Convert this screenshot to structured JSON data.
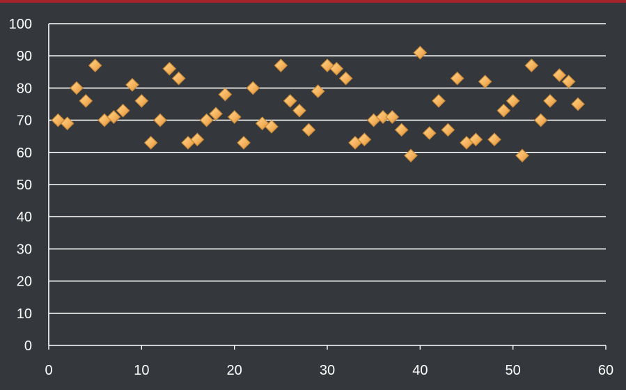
{
  "chart_data": {
    "type": "scatter",
    "title": "",
    "xlabel": "",
    "ylabel": "",
    "xlim": [
      0,
      60
    ],
    "ylim": [
      0,
      100
    ],
    "x_ticks": [
      0,
      10,
      20,
      30,
      40,
      50,
      60
    ],
    "y_ticks": [
      0,
      10,
      20,
      30,
      40,
      50,
      60,
      70,
      80,
      90,
      100
    ],
    "grid": "horizontal",
    "legend": "none",
    "marker": "diamond",
    "marker_color": "#f6b35d",
    "series": [
      {
        "x": [
          1,
          2,
          3,
          4,
          5,
          6,
          7,
          8,
          9,
          10,
          11,
          12,
          13,
          14,
          15,
          16,
          17,
          18,
          19,
          20,
          21,
          22,
          23,
          24,
          25,
          26,
          27,
          28,
          29,
          30,
          31,
          32,
          33,
          34,
          35,
          36,
          37,
          38,
          39,
          40,
          41,
          42,
          43,
          44,
          45,
          46,
          47,
          48,
          49,
          50,
          51,
          52,
          53,
          54,
          55,
          56,
          57
        ],
        "y": [
          70,
          69,
          80,
          76,
          87,
          70,
          71,
          73,
          81,
          76,
          63,
          70,
          86,
          83,
          63,
          64,
          70,
          72,
          78,
          71,
          63,
          80,
          69,
          68,
          87,
          76,
          73,
          67,
          79,
          87,
          86,
          83,
          63,
          64,
          70,
          71,
          71,
          67,
          59,
          91,
          66,
          76,
          67,
          83,
          63,
          64,
          82,
          64,
          73,
          76,
          59,
          87,
          70,
          76,
          84,
          82,
          75
        ]
      }
    ]
  },
  "colors": {
    "background": "#34373b",
    "top_rule": "#a3242a",
    "grid": "#ffffff",
    "marker_fill": "#f6b35d",
    "marker_stroke": "#c98a3a"
  }
}
